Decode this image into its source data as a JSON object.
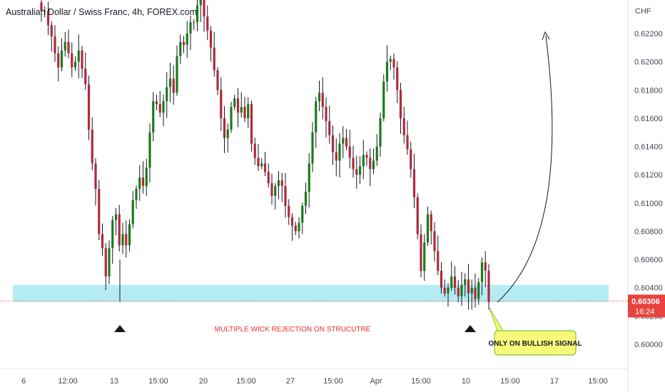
{
  "header": {
    "title": "Australian Dollar / Swiss Franc, 4h, FOREX.com"
  },
  "price_axis": {
    "currency": "CHF",
    "current_price": "0.60306",
    "countdown": "16:24"
  },
  "colors": {
    "up": "#089981",
    "up_body": "#1b7a1b",
    "down": "#b2283c",
    "zone": "#b5ecf3",
    "current": "#e8433e",
    "callout_fill": "#fafa7a",
    "callout_border": "#7cc83c"
  },
  "annotations": {
    "main_text": "MULTIPLE WICK REJECTION ON STRUCUTRE",
    "callout": "ONLY ON BULLISH SIGNAL"
  },
  "chart_data": {
    "type": "candlestick",
    "title": "Australian Dollar / Swiss Franc, 4h, FOREX.com",
    "ylim": [
      0.5986,
      0.6248
    ],
    "y_ticks": [
      0.6,
      0.602,
      0.604,
      0.606,
      0.608,
      0.61,
      0.612,
      0.614,
      0.616,
      0.618,
      0.62,
      0.622
    ],
    "y_tick_labels": [
      "0.60000",
      "0.60200",
      "0.60400",
      "0.60600",
      "0.60800",
      "0.61000",
      "0.61200",
      "0.61400",
      "0.61600",
      "0.61800",
      "0.62000",
      "0.62200"
    ],
    "x_tick_labels": [
      "6",
      "12:00",
      "13",
      "15:00",
      "20",
      "15:00",
      "27",
      "15:00",
      "Apr",
      "15:00",
      "10",
      "15:00",
      "17",
      "15:00"
    ],
    "support_zone": [
      0.603,
      0.6042
    ],
    "current_price": 0.60306,
    "close_path": [
      0.6236,
      0.6236,
      0.6226,
      0.6218,
      0.6206,
      0.6196,
      0.6208,
      0.6214,
      0.6206,
      0.6196,
      0.62,
      0.6208,
      0.6195,
      0.6184,
      0.6152,
      0.6128,
      0.611,
      0.6078,
      0.6068,
      0.6048,
      0.6068,
      0.6088,
      0.6092,
      0.607,
      0.6078,
      0.607,
      0.6085,
      0.6102,
      0.611,
      0.6118,
      0.6112,
      0.6125,
      0.615,
      0.6172,
      0.617,
      0.6164,
      0.6172,
      0.6182,
      0.6188,
      0.6178,
      0.6204,
      0.6214,
      0.6212,
      0.622,
      0.6228,
      0.6228,
      0.624,
      0.6246,
      0.6232,
      0.6222,
      0.621,
      0.6194,
      0.618,
      0.616,
      0.6146,
      0.6152,
      0.6168,
      0.6174,
      0.6164,
      0.6168,
      0.616,
      0.617,
      0.6142,
      0.6132,
      0.6126,
      0.6128,
      0.6122,
      0.6114,
      0.6105,
      0.6112,
      0.6116,
      0.6112,
      0.6098,
      0.609,
      0.6084,
      0.608,
      0.6086,
      0.6098,
      0.6108,
      0.6128,
      0.615,
      0.6172,
      0.6178,
      0.6168,
      0.6158,
      0.6148,
      0.6136,
      0.613,
      0.6142,
      0.6146,
      0.614,
      0.6132,
      0.6124,
      0.612,
      0.6126,
      0.6134,
      0.6132,
      0.6124,
      0.613,
      0.614,
      0.616,
      0.6186,
      0.62,
      0.6202,
      0.6196,
      0.618,
      0.616,
      0.6148,
      0.6138,
      0.6124,
      0.6104,
      0.6078,
      0.6052,
      0.6072,
      0.6092,
      0.608,
      0.6066,
      0.6052,
      0.604,
      0.6036,
      0.604,
      0.6048,
      0.604,
      0.6034,
      0.6042,
      0.6046,
      0.6036,
      0.604,
      0.6032,
      0.6044,
      0.6058,
      0.6052,
      0.603
    ]
  }
}
